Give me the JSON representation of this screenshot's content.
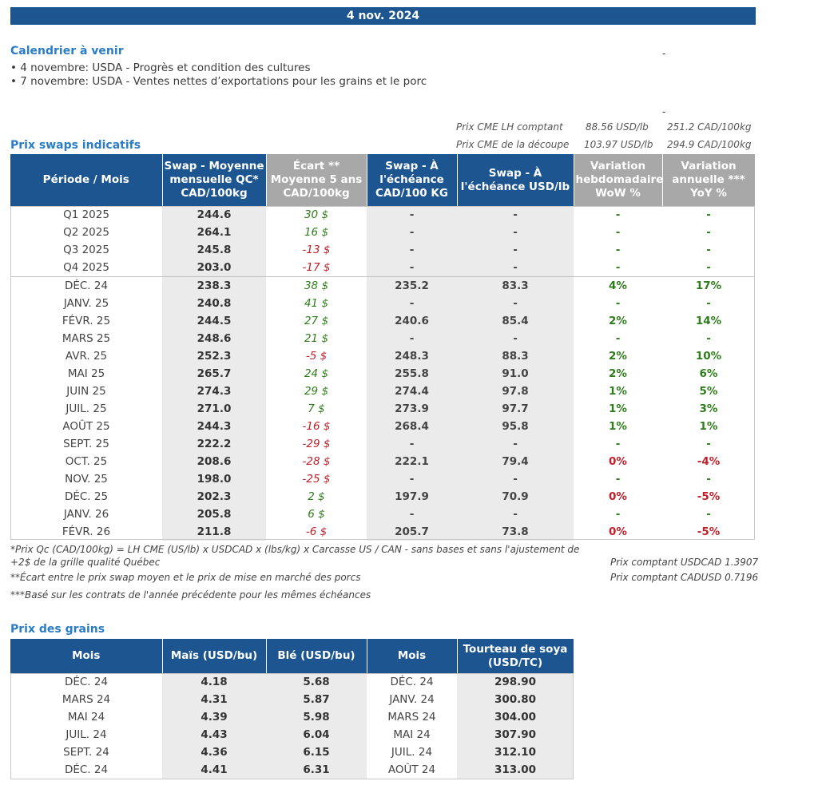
{
  "date": "4 nov. 2024",
  "calendar": {
    "title": "Calendrier à venir",
    "items": [
      "• 4 novembre: USDA - Progrès et condition des cultures",
      "• 7 novembre: USDA - Ventes nettes d’exportations pour les grains et le porc"
    ],
    "marks": [
      "-",
      "-"
    ]
  },
  "cme": {
    "spot_label": "Prix CME LH comptant",
    "spot_usd": "88.56 USD/lb",
    "spot_cad": "251.2 CAD/100kg",
    "cutout_label": "Prix CME de la découpe",
    "cutout_usd": "103.97 USD/lb",
    "cutout_cad": "294.9 CAD/100kg"
  },
  "swaps": {
    "title": "Prix swaps indicatifs",
    "headers": [
      "Période / Mois",
      "Swap - Moyenne mensuelle QC* CAD/100kg",
      "Écart ** Moyenne 5 ans CAD/100kg",
      "Swap - À l'échéance CAD/100 KG",
      "Swap - À l'échéance USD/lb",
      "Variation hebdomadaire WoW %",
      "Variation annuelle *** YoY %"
    ],
    "rows": [
      [
        "Q1 2025",
        "244.6",
        "30 $",
        "-",
        "-",
        "-",
        "-"
      ],
      [
        "Q2 2025",
        "264.1",
        "16 $",
        "-",
        "-",
        "-",
        "-"
      ],
      [
        "Q3 2025",
        "245.8",
        "-13 $",
        "-",
        "-",
        "-",
        "-"
      ],
      [
        "Q4 2025",
        "203.0",
        "-17 $",
        "-",
        "-",
        "-",
        "-"
      ],
      [
        "DÉC. 24",
        "238.3",
        "38 $",
        "235.2",
        "83.3",
        "4%",
        "17%"
      ],
      [
        "JANV. 25",
        "240.8",
        "41 $",
        "-",
        "-",
        "-",
        "-"
      ],
      [
        "FÉVR. 25",
        "244.5",
        "27 $",
        "240.6",
        "85.4",
        "2%",
        "14%"
      ],
      [
        "MARS 25",
        "248.6",
        "21 $",
        "-",
        "-",
        "-",
        "-"
      ],
      [
        "AVR. 25",
        "252.3",
        "-5 $",
        "248.3",
        "88.3",
        "2%",
        "10%"
      ],
      [
        "MAI 25",
        "265.7",
        "24 $",
        "255.8",
        "91.0",
        "2%",
        "6%"
      ],
      [
        "JUIN 25",
        "274.3",
        "29 $",
        "274.4",
        "97.8",
        "1%",
        "5%"
      ],
      [
        "JUIL. 25",
        "271.0",
        "7 $",
        "273.9",
        "97.7",
        "1%",
        "3%"
      ],
      [
        "AOÛT 25",
        "244.3",
        "-16 $",
        "268.4",
        "95.8",
        "1%",
        "1%"
      ],
      [
        "SEPT. 25",
        "222.2",
        "-29 $",
        "-",
        "-",
        "-",
        "-"
      ],
      [
        "OCT. 25",
        "208.6",
        "-28 $",
        "222.1",
        "79.4",
        "0%",
        "-4%"
      ],
      [
        "NOV. 25",
        "198.0",
        "-25 $",
        "-",
        "-",
        "-",
        "-"
      ],
      [
        "DÉC. 25",
        "202.3",
        "2 $",
        "197.9",
        "70.9",
        "0%",
        "-5%"
      ],
      [
        "JANV. 26",
        "205.8",
        "6 $",
        "-",
        "-",
        "-",
        "-"
      ],
      [
        "FÉVR. 26",
        "211.8",
        "-6 $",
        "205.7",
        "73.8",
        "0%",
        "-5%"
      ]
    ],
    "value_colors": {
      "positive": "#2e7d1a",
      "negative": "#c0202a",
      "header_blue": "#1c5590",
      "header_grey": "#a8a8a8"
    }
  },
  "footnotes": {
    "note1": "*Prix Qc (CAD/100kg) = LH CME (US/lb) x USDCAD x (lbs/kg) x Carcasse US / CAN - sans bases et sans l'ajustement de +2$ de la grille qualité Québec",
    "note2": "**Écart entre le prix swap moyen et le prix de mise en marché des porcs",
    "note3": "***Basé sur les contrats de l'année précédente pour les mêmes échéances",
    "usdcad": "Prix comptant USDCAD 1.3907",
    "cadusd": "Prix comptant CADUSD 0.7196"
  },
  "grains": {
    "title": "Prix des grains",
    "headers": [
      "Mois",
      "Maïs (USD/bu)",
      "Blé (USD/bu)",
      "Mois",
      "Tourteau de soya (USD/TC)"
    ],
    "rows": [
      [
        "DÉC. 24",
        "4.18",
        "5.68",
        "DÉC. 24",
        "298.90"
      ],
      [
        "MARS 24",
        "4.31",
        "5.87",
        "JANV. 24",
        "300.80"
      ],
      [
        "MAI 24",
        "4.39",
        "5.98",
        "MARS 24",
        "304.00"
      ],
      [
        "JUIL. 24",
        "4.43",
        "6.04",
        "MAI 24",
        "307.90"
      ],
      [
        "SEPT. 24",
        "4.36",
        "6.15",
        "JUIL. 24",
        "312.10"
      ],
      [
        "DÉC. 24",
        "4.41",
        "6.31",
        "AOÛT 24",
        "313.00"
      ]
    ]
  }
}
